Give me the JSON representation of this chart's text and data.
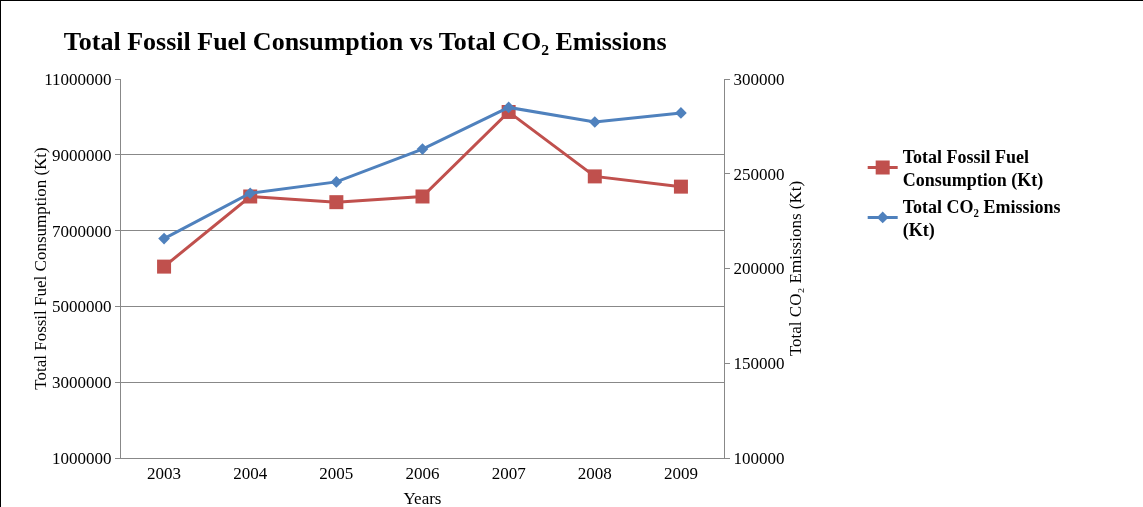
{
  "chart_data": {
    "type": "line",
    "title": "Total Fossil Fuel Consumption vs Total CO₂ Emissions",
    "xlabel": "Years",
    "ylabel": "Total Fossil Fuel Consumption (Kt)",
    "y2label": "Total CO₂ Emissions (Kt)",
    "categories": [
      "2003",
      "2004",
      "2005",
      "2006",
      "2007",
      "2008",
      "2009"
    ],
    "series": [
      {
        "name": "Total Fossil Fuel Consumption (Kt)",
        "color": "#c0504d",
        "marker": "square",
        "values": [
          6050000,
          7900000,
          7750000,
          7900000,
          10130000,
          8430000,
          8160000
        ]
      },
      {
        "name": "Total CO₂ Emissions (Kt)",
        "color": "#4f81bd",
        "marker": "diamond",
        "axis": "y2",
        "values": [
          215800,
          239700,
          245700,
          263000,
          285000,
          277300,
          282100
        ]
      }
    ],
    "ylim": [
      1000000,
      11000000
    ],
    "yticks": [
      1000000,
      3000000,
      5000000,
      7000000,
      9000000,
      11000000
    ],
    "y2lim": [
      100000,
      300000
    ],
    "y2ticks": [
      100000,
      150000,
      200000,
      250000,
      300000
    ],
    "grid": "y",
    "legend": "right",
    "line_style": "solid"
  }
}
